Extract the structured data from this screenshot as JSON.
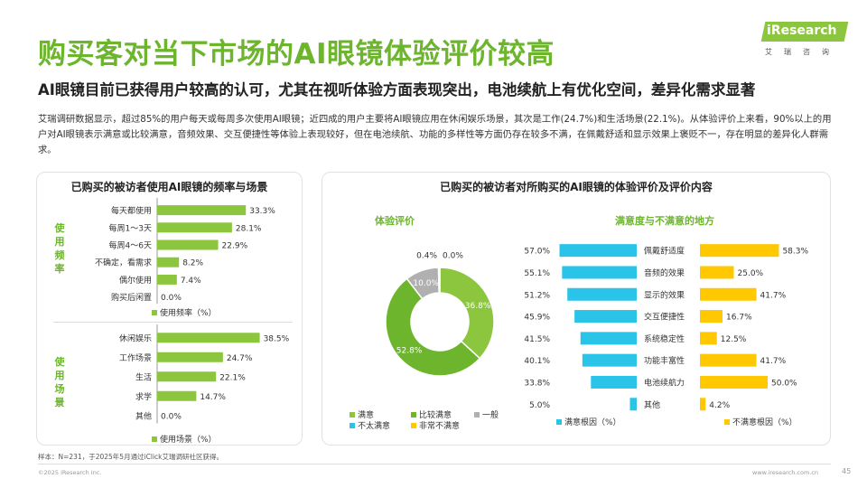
{
  "header": {
    "title": "购买客对当下市场的AI眼镜体验评价较高",
    "subtitle": "AI眼镜目前已获得用户较高的认可，尤其在视听体验方面表现突出，电池续航上有优化空间，差异化需求显著",
    "intro": "艾瑞调研数据显示，超过85%的用户每天或每周多次使用AI眼镜；近四成的用户主要将AI眼镜应用在休闲娱乐场景，其次是工作(24.7%)和生活场景(22.1%)。从体验评价上来看，90%以上的用户对AI眼镜表示满意或比较满意，音频效果、交互便捷性等体验上表现较好，但在电池续航、功能的多样性等方面仍存在较多不满，在佩戴舒适和显示效果上褒贬不一，存在明显的差异化人群需求。"
  },
  "logo": {
    "brand": "iResearch",
    "cn": "艾瑞咨询"
  },
  "colors": {
    "green": "#8cc63f",
    "title_green": "#6cb52d",
    "blue": "#29c4e8",
    "yellow": "#ffc800",
    "gray": "#b0b0b0",
    "light_green": "#b5d98a",
    "pale_green": "#d4ecaa"
  },
  "panel_left": {
    "title": "已购买的被访者使用AI眼镜的频率与场景",
    "freq_side_label": "使用频率",
    "scene_side_label": "使用场景",
    "freq_legend": "使用频率（%）",
    "scene_legend": "使用场景（%）"
  },
  "panel_right": {
    "title": "已购买的被访者对所购买的AI眼镜的体验评价及评价内容",
    "donut_title": "体验评价",
    "bars_title": "满意度与不满意的地方",
    "donut_legend": [
      "满意",
      "比较满意",
      "一般",
      "不太满意",
      "非常不满意"
    ],
    "sat_legend": "满意根因（%）",
    "unsat_legend": "不满意根因（%）"
  },
  "chart_data": [
    {
      "type": "bar",
      "orientation": "horizontal",
      "title": "使用频率（%）",
      "categories": [
        "每天都使用",
        "每周1～3天",
        "每周4～6天",
        "不确定，看需求",
        "偶尔使用",
        "购买后闲置"
      ],
      "values": [
        33.3,
        28.1,
        22.9,
        8.2,
        7.4,
        0.0
      ],
      "labels": [
        "33.3%",
        "28.1%",
        "22.9%",
        "8.2%",
        "7.4%",
        "0.0%"
      ],
      "xlim": [
        0,
        40
      ]
    },
    {
      "type": "bar",
      "orientation": "horizontal",
      "title": "使用场景（%）",
      "categories": [
        "休闲娱乐",
        "工作场景",
        "生活",
        "求学",
        "其他"
      ],
      "values": [
        38.5,
        24.7,
        22.1,
        14.7,
        0.0
      ],
      "labels": [
        "38.5%",
        "24.7%",
        "22.1%",
        "14.7%",
        "0.0%"
      ],
      "xlim": [
        0,
        40
      ]
    },
    {
      "type": "pie",
      "style": "donut",
      "title": "体验评价",
      "categories": [
        "满意",
        "比较满意",
        "一般",
        "不太满意",
        "非常不满意"
      ],
      "values": [
        36.8,
        52.8,
        10.0,
        0.4,
        0.0
      ],
      "labels": [
        "36.8%",
        "52.8%",
        "10.0%",
        "0.4%",
        "0.0%"
      ]
    },
    {
      "type": "bar",
      "orientation": "horizontal",
      "layout": "butterfly",
      "title": "满意度与不满意的地方",
      "categories": [
        "佩戴舒适度",
        "音频的效果",
        "显示的效果",
        "交互便捷性",
        "系统稳定性",
        "功能丰富性",
        "电池续航力",
        "其他"
      ],
      "series": [
        {
          "name": "满意根因（%）",
          "values": [
            57.0,
            55.1,
            51.2,
            45.9,
            41.5,
            40.1,
            33.8,
            5.0
          ],
          "labels": [
            "57.0%",
            "55.1%",
            "51.2%",
            "45.9%",
            "41.5%",
            "40.1%",
            "33.8%",
            "5.0%"
          ]
        },
        {
          "name": "不满意根因（%）",
          "values": [
            58.3,
            25.0,
            41.7,
            16.7,
            12.5,
            41.7,
            50.0,
            4.2
          ],
          "labels": [
            "58.3%",
            "25.0%",
            "41.7%",
            "16.7%",
            "12.5%",
            "41.7%",
            "50.0%",
            "4.2%"
          ]
        }
      ],
      "xlim": [
        0,
        60
      ]
    }
  ],
  "footer": {
    "note": "样本：N=231，于2025年5月通过iClick艾瑞调研社区获得。",
    "copyright": "©2025 iResearch Inc.",
    "url": "www.iresearch.com.cn",
    "page": "45"
  }
}
